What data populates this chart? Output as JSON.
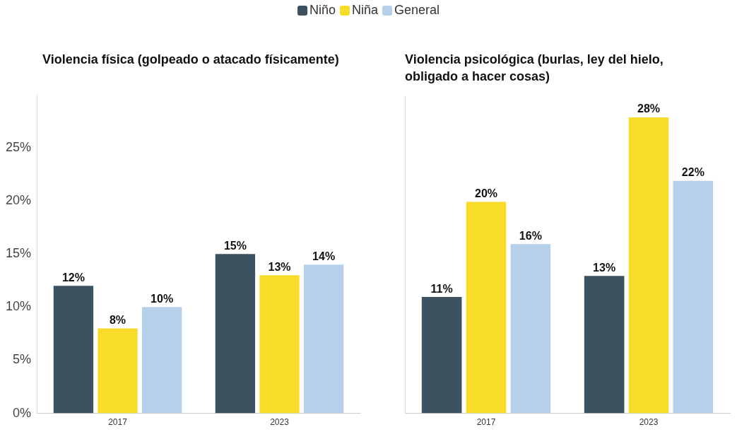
{
  "chart_data": [
    {
      "type": "bar",
      "title": "Violencia física (golpeado o atacado físicamente)",
      "categories": [
        "2017",
        "2023"
      ],
      "series": [
        {
          "name": "Niño",
          "color": "#3d5260",
          "values": [
            12,
            15
          ],
          "value_labels": [
            "12%",
            "15%"
          ]
        },
        {
          "name": "Niña",
          "color": "#f7dc2a",
          "values": [
            8,
            13
          ],
          "value_labels": [
            "8%",
            "13%"
          ]
        },
        {
          "name": "General",
          "color": "#b5d0e8",
          "values": [
            10,
            14
          ],
          "value_labels": [
            "10%",
            "14%"
          ]
        }
      ],
      "ylim": [
        0,
        30
      ],
      "yticks": [
        {
          "value": 0,
          "label": "0%"
        },
        {
          "value": 5,
          "label": "5%"
        },
        {
          "value": 10,
          "label": "10%"
        },
        {
          "value": 15,
          "label": "15%"
        },
        {
          "value": 20,
          "label": "20%"
        },
        {
          "value": 25,
          "label": "25%"
        }
      ],
      "grid": false,
      "legend": "top"
    },
    {
      "type": "bar",
      "title": "Violencia psicológica (burlas, ley del hielo, obligado a hacer cosas)",
      "categories": [
        "2017",
        "2023"
      ],
      "series": [
        {
          "color": "#3d5260",
          "values": [
            11,
            13
          ],
          "value_labels": [
            "11%",
            "13%"
          ]
        },
        {
          "color": "#f7dc2a",
          "values": [
            20,
            28
          ],
          "value_labels": [
            "20%",
            "28%"
          ]
        },
        {
          "color": "#b5d0e8",
          "values": [
            16,
            22
          ],
          "value_labels": [
            "16%",
            "22%"
          ]
        }
      ],
      "ylim": [
        0,
        30
      ],
      "grid": false,
      "tick_labels": "x"
    }
  ]
}
